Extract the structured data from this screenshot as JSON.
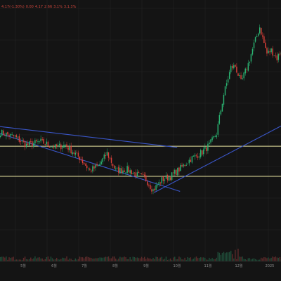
{
  "header": {
    "parts": [
      "4.17(-1.30%)",
      "0.00",
      "4.17",
      "2.66",
      "3.1%",
      "3.1.3%"
    ]
  },
  "colors": {
    "background": "#141414",
    "grid": "#242424",
    "up": "#2bb673",
    "down": "#e0403a",
    "trendline": "#3a56c8",
    "level": "#e8e3a0",
    "volume": "#5a2a2a"
  },
  "chart_data": {
    "type": "candlestick",
    "xlabel": "",
    "ylabel": "",
    "x_ticks": [
      "5월",
      "6월",
      "7월",
      "8월",
      "9월",
      "10월",
      "11월",
      "12월",
      "2025"
    ],
    "price_range": [
      0,
      100
    ],
    "horizontal_levels": [
      36,
      62
    ],
    "trendlines": [
      {
        "name": "upper channel",
        "from": {
          "bar": 0,
          "price": 79
        },
        "to": {
          "bar": 123,
          "price": 61
        }
      },
      {
        "name": "lower channel",
        "from": {
          "bar": 0,
          "price": 73
        },
        "to": {
          "bar": 125,
          "price": 23
        }
      },
      {
        "name": "rising support",
        "from": {
          "bar": 107,
          "price": 22
        },
        "to": {
          "bar": 199,
          "price": 82
        }
      }
    ],
    "close_anchors": [
      [
        0,
        74
      ],
      [
        10,
        70
      ],
      [
        18,
        63
      ],
      [
        28,
        66
      ],
      [
        38,
        61
      ],
      [
        45,
        63
      ],
      [
        55,
        52
      ],
      [
        62,
        41
      ],
      [
        68,
        45
      ],
      [
        74,
        56
      ],
      [
        80,
        41
      ],
      [
        88,
        42
      ],
      [
        95,
        37
      ],
      [
        100,
        35
      ],
      [
        106,
        24
      ],
      [
        112,
        33
      ],
      [
        118,
        36
      ],
      [
        125,
        43
      ],
      [
        132,
        51
      ],
      [
        140,
        57
      ],
      [
        145,
        63
      ],
      [
        150,
        73
      ],
      [
        155,
        107
      ],
      [
        160,
        130
      ],
      [
        163,
        131
      ],
      [
        167,
        117
      ],
      [
        172,
        133
      ],
      [
        176,
        150
      ],
      [
        180,
        165
      ],
      [
        185,
        142
      ],
      [
        188,
        145
      ],
      [
        192,
        138
      ],
      [
        196,
        147
      ],
      [
        199,
        143
      ]
    ],
    "n_bars": 200
  }
}
